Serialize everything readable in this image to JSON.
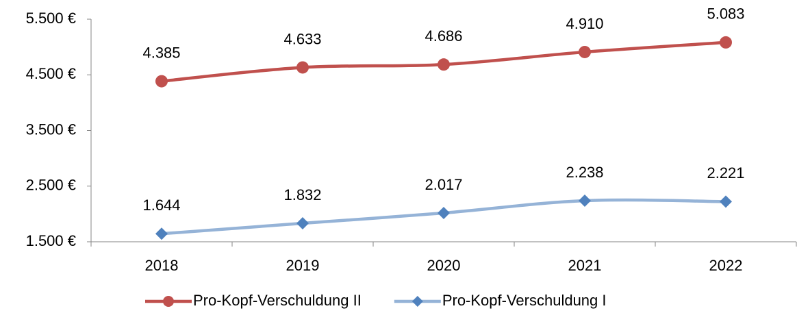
{
  "chart_data": {
    "type": "line",
    "categories": [
      "2018",
      "2019",
      "2020",
      "2021",
      "2022"
    ],
    "series": [
      {
        "name": "Pro-Kopf-Verschuldung II",
        "color": "#c0504d",
        "marker": "circle",
        "values": [
          4385,
          4633,
          4686,
          4910,
          5083
        ],
        "value_labels": [
          "4.385",
          "4.633",
          "4.686",
          "4.910",
          "5.083"
        ]
      },
      {
        "name": "Pro-Kopf-Verschuldung I",
        "color": "#95b3d7",
        "marker_color": "#4f81bd",
        "marker": "diamond",
        "values": [
          1644,
          1832,
          2017,
          2238,
          2221
        ],
        "value_labels": [
          "1.644",
          "1.832",
          "2.017",
          "2.238",
          "2.221"
        ]
      }
    ],
    "ylim": [
      1500,
      5500
    ],
    "yticks": [
      {
        "value": 1500,
        "label": "1.500 €"
      },
      {
        "value": 2500,
        "label": "2.500 €"
      },
      {
        "value": 3500,
        "label": "3.500 €"
      },
      {
        "value": 4500,
        "label": "4.500 €"
      },
      {
        "value": 5500,
        "label": "5.500 €"
      }
    ],
    "grid": false,
    "smooth": true,
    "legend": "bottom"
  }
}
